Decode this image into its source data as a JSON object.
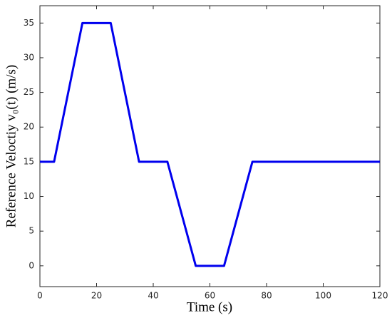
{
  "chart_data": {
    "type": "line",
    "x_label": "Time (s)",
    "y_label": "Reference Veloctiy v₀(t) (m/s)",
    "x": [
      0,
      5,
      15,
      25,
      35,
      45,
      55,
      65,
      75,
      120
    ],
    "series": [
      {
        "color": "#0000ee",
        "values": [
          15,
          15,
          35,
          35,
          15,
          15,
          0,
          0,
          15,
          15
        ]
      }
    ],
    "xlim": [
      0,
      120
    ],
    "xticks": [
      0,
      20,
      40,
      60,
      80,
      100,
      120
    ],
    "ylim": [
      -3,
      37.5
    ],
    "yticks": [
      0,
      5,
      10,
      15,
      20,
      25,
      30,
      35
    ]
  }
}
